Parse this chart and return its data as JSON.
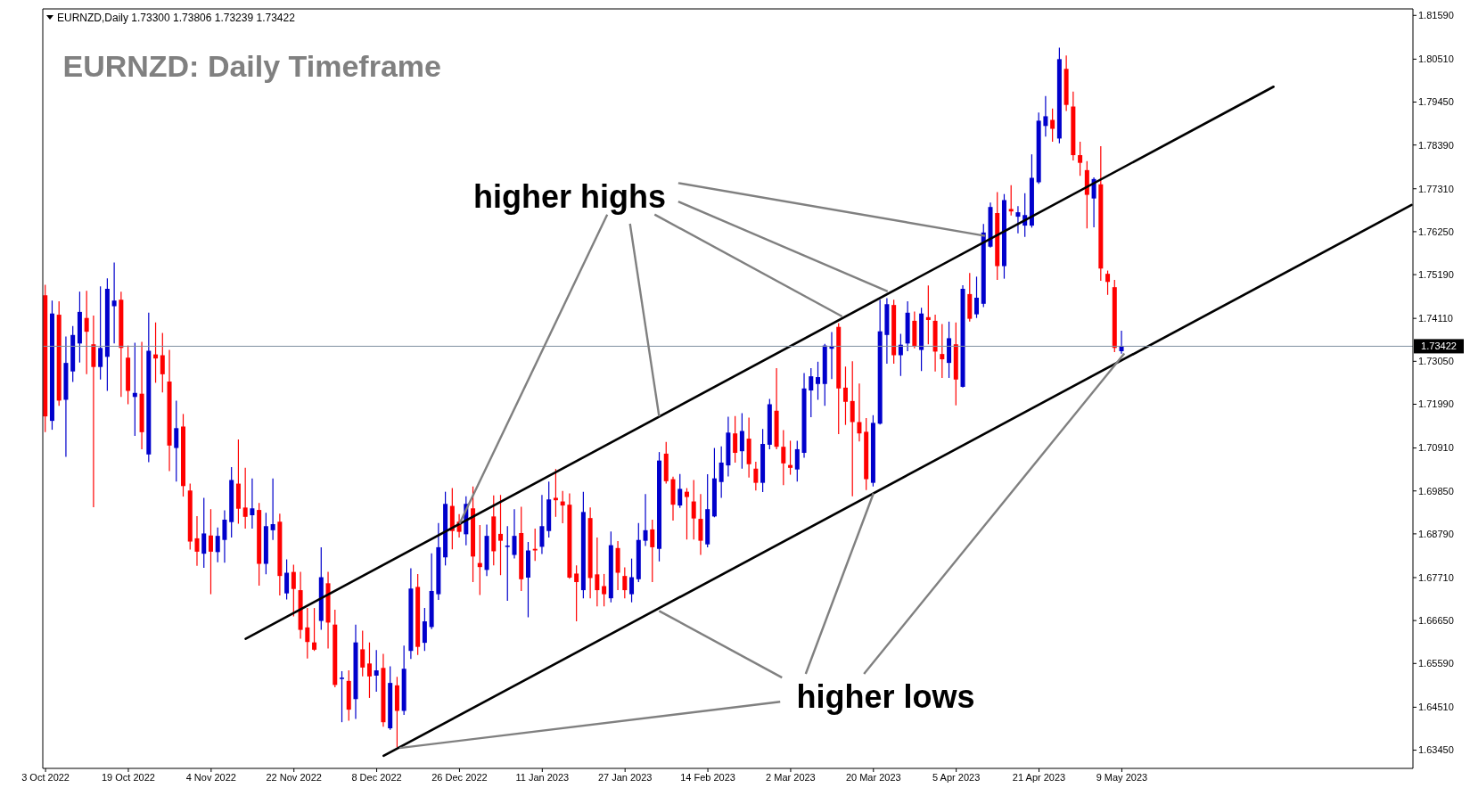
{
  "chart_data": {
    "type": "candlestick",
    "title": "EURNZD: Daily Timeframe",
    "subtitle": "EURNZD,Daily  1.73300 1.73806 1.73239 1.73422",
    "annotations": [
      {
        "text": "higher highs",
        "x": "26 Dec 2022",
        "y": 1.6904
      },
      {
        "text": "higher lows",
        "x": "20 Mar 2023",
        "y": 1.6979
      }
    ],
    "categories": [
      "3 Oct 2022",
      null,
      null,
      null,
      null,
      null,
      null,
      null,
      null,
      null,
      null,
      null,
      "19 Oct 2022",
      null,
      null,
      null,
      null,
      null,
      null,
      null,
      null,
      null,
      null,
      null,
      "4 Nov 2022",
      null,
      null,
      null,
      null,
      null,
      null,
      null,
      null,
      null,
      null,
      null,
      "22 Nov 2022",
      null,
      null,
      null,
      null,
      null,
      null,
      null,
      null,
      null,
      null,
      null,
      "8 Dec 2022",
      null,
      null,
      null,
      null,
      null,
      null,
      null,
      null,
      null,
      null,
      null,
      "26 Dec 2022",
      null,
      null,
      null,
      null,
      null,
      null,
      null,
      null,
      null,
      null,
      null,
      "11 Jan 2023",
      null,
      null,
      null,
      null,
      null,
      null,
      null,
      null,
      null,
      null,
      null,
      "27 Jan 2023",
      null,
      null,
      null,
      null,
      null,
      null,
      null,
      null,
      null,
      null,
      null,
      "14 Feb 2023",
      null,
      null,
      null,
      null,
      null,
      null,
      null,
      null,
      null,
      null,
      null,
      "2 Mar 2023",
      null,
      null,
      null,
      null,
      null,
      null,
      null,
      null,
      null,
      null,
      null,
      "20 Mar 2023",
      null,
      null,
      null,
      null,
      null,
      null,
      null,
      null,
      null,
      null,
      null,
      "5 Apr 2023",
      null,
      null,
      null,
      null,
      null,
      null,
      null,
      null,
      null,
      null,
      null,
      "21 Apr 2023",
      null,
      null,
      null,
      null,
      null,
      null,
      null,
      null,
      null,
      null,
      null,
      "9 May 2023",
      null,
      null,
      null,
      null,
      null,
      null,
      null,
      null,
      null,
      null,
      null,
      null,
      null,
      null,
      null,
      null,
      null,
      null,
      null,
      null,
      null,
      null,
      null,
      null,
      null,
      null,
      null,
      null,
      null,
      null,
      null,
      null,
      null,
      null,
      null,
      null,
      null,
      null,
      null,
      null,
      null,
      null
    ],
    "ohlc": [
      [
        1.7468,
        1.7494,
        1.713,
        1.7169
      ],
      [
        1.7158,
        1.7455,
        1.7136,
        1.7423
      ],
      [
        1.742,
        1.7453,
        1.7195,
        1.7208
      ],
      [
        1.721,
        1.7366,
        1.7069,
        1.7301
      ],
      [
        1.728,
        1.7392,
        1.7254,
        1.737
      ],
      [
        1.7349,
        1.7477,
        1.7302,
        1.7427
      ],
      [
        1.7412,
        1.7479,
        1.7273,
        1.7378
      ],
      [
        1.7347,
        1.7418,
        1.6945,
        1.7291
      ],
      [
        1.7291,
        1.749,
        1.726,
        1.7338
      ],
      [
        1.7316,
        1.751,
        1.7232,
        1.7484
      ],
      [
        1.7441,
        1.7549,
        1.7349,
        1.7455
      ],
      [
        1.7457,
        1.7477,
        1.7217,
        1.7338
      ],
      [
        1.7314,
        1.7344,
        1.7199,
        1.7232
      ],
      [
        1.7217,
        1.7351,
        1.7121,
        1.7227
      ],
      [
        1.7225,
        1.7353,
        1.7088,
        1.713
      ],
      [
        1.7075,
        1.7425,
        1.7056,
        1.7331
      ],
      [
        1.7322,
        1.7401,
        1.7252,
        1.7312
      ],
      [
        1.732,
        1.7375,
        1.7228,
        1.7273
      ],
      [
        1.7255,
        1.7333,
        1.7034,
        1.7097
      ],
      [
        1.7091,
        1.7208,
        1.7008,
        1.714
      ],
      [
        1.7144,
        1.7175,
        1.6971,
        1.6997
      ],
      [
        1.6986,
        1.7003,
        1.684,
        1.686
      ],
      [
        1.6868,
        1.6923,
        1.68,
        1.6835
      ],
      [
        1.683,
        1.6968,
        1.6795,
        1.688
      ],
      [
        1.6875,
        1.694,
        1.673,
        1.6835
      ],
      [
        1.6834,
        1.6895,
        1.6809,
        1.6874
      ],
      [
        1.6864,
        1.6937,
        1.6808,
        1.6914
      ],
      [
        1.6908,
        1.7044,
        1.687,
        1.7012
      ],
      [
        1.7003,
        1.7112,
        1.6904,
        1.6941
      ],
      [
        1.6944,
        1.7042,
        1.6892,
        1.6921
      ],
      [
        1.6925,
        1.7016,
        1.6892,
        1.6942
      ],
      [
        1.6938,
        1.6955,
        1.6751,
        1.6805
      ],
      [
        1.6805,
        1.6931,
        1.6779,
        1.6898
      ],
      [
        1.6888,
        1.7016,
        1.6864,
        1.6903
      ],
      [
        1.6909,
        1.6929,
        1.6727,
        1.6775
      ],
      [
        1.6732,
        1.6816,
        1.6717,
        1.6783
      ],
      [
        1.6785,
        1.6803,
        1.6675,
        1.6743
      ],
      [
        1.674,
        1.6785,
        1.662,
        1.6642
      ],
      [
        1.6648,
        1.6696,
        1.6571,
        1.6612
      ],
      [
        1.6611,
        1.6696,
        1.659,
        1.6593
      ],
      [
        1.6664,
        1.6846,
        1.6642,
        1.6772
      ],
      [
        1.6757,
        1.6785,
        1.6596,
        1.666
      ],
      [
        1.6655,
        1.6692,
        1.65,
        1.6506
      ],
      [
        1.6522,
        1.654,
        1.6414,
        1.6524
      ],
      [
        1.6516,
        1.6542,
        1.6418,
        1.6445
      ],
      [
        1.6471,
        1.6655,
        1.6422,
        1.6611
      ],
      [
        1.6594,
        1.664,
        1.6527,
        1.6549
      ],
      [
        1.6559,
        1.6611,
        1.6474,
        1.6527
      ],
      [
        1.6529,
        1.6592,
        1.6489,
        1.6542
      ],
      [
        1.6548,
        1.6583,
        1.6403,
        1.6414
      ],
      [
        1.6399,
        1.6552,
        1.6395,
        1.6511
      ],
      [
        1.6505,
        1.6526,
        1.6352,
        1.6442
      ],
      [
        1.6442,
        1.6603,
        1.6432,
        1.6546
      ],
      [
        1.659,
        1.6794,
        1.657,
        1.6744
      ],
      [
        1.6748,
        1.678,
        1.658,
        1.66
      ],
      [
        1.661,
        1.6696,
        1.659,
        1.6663
      ],
      [
        1.6649,
        1.6831,
        1.6644,
        1.6738
      ],
      [
        1.673,
        1.6906,
        1.6716,
        1.6846
      ],
      [
        1.6821,
        1.6983,
        1.6801,
        1.6953
      ],
      [
        1.6948,
        1.6992,
        1.6841,
        1.6886
      ],
      [
        1.6909,
        1.6928,
        1.687,
        1.6884
      ],
      [
        1.6878,
        1.6972,
        1.6851,
        1.6953
      ],
      [
        1.6942,
        1.6996,
        1.676,
        1.6823
      ],
      [
        1.6807,
        1.6901,
        1.6728,
        1.6797
      ],
      [
        1.679,
        1.6902,
        1.6775,
        1.6874
      ],
      [
        1.6922,
        1.6974,
        1.6801,
        1.6836
      ],
      [
        1.6879,
        1.6975,
        1.6777,
        1.6862
      ],
      [
        1.6849,
        1.6898,
        1.6714,
        1.685
      ],
      [
        1.6827,
        1.694,
        1.6818,
        1.6874
      ],
      [
        1.6881,
        1.6946,
        1.6738,
        1.6767
      ],
      [
        1.6771,
        1.6859,
        1.6673,
        1.6838
      ],
      [
        1.6842,
        1.6892,
        1.6812,
        1.6838
      ],
      [
        1.6847,
        1.6975,
        1.6829,
        1.6898
      ],
      [
        1.6886,
        1.7008,
        1.687,
        1.6964
      ],
      [
        1.6968,
        1.7039,
        1.6921,
        1.6962
      ],
      [
        1.6959,
        1.6985,
        1.6905,
        1.6949
      ],
      [
        1.6951,
        1.6979,
        1.6768,
        1.6771
      ],
      [
        1.6781,
        1.6801,
        1.6663,
        1.676
      ],
      [
        1.674,
        1.6983,
        1.672,
        1.6933
      ],
      [
        1.6918,
        1.6944,
        1.672,
        1.677
      ],
      [
        1.6779,
        1.687,
        1.67,
        1.674
      ],
      [
        1.675,
        1.678,
        1.67,
        1.673
      ],
      [
        1.672,
        1.6885,
        1.671,
        1.6851
      ],
      [
        1.6844,
        1.6861,
        1.674,
        1.6783
      ],
      [
        1.6775,
        1.6796,
        1.672,
        1.674
      ],
      [
        1.673,
        1.6818,
        1.671,
        1.6772
      ],
      [
        1.6767,
        1.6906,
        1.676,
        1.6864
      ],
      [
        1.6862,
        1.6977,
        1.6849,
        1.6888
      ],
      [
        1.689,
        1.6914,
        1.676,
        1.6846
      ],
      [
        1.6842,
        1.7081,
        1.6811,
        1.706
      ],
      [
        1.7077,
        1.7106,
        1.7003,
        1.7009
      ],
      [
        1.7014,
        1.702,
        1.6912,
        1.6951
      ],
      [
        1.6949,
        1.7027,
        1.6943,
        1.699
      ],
      [
        1.6983,
        1.6992,
        1.6865,
        1.697
      ],
      [
        1.6959,
        1.7012,
        1.6865,
        1.6917
      ],
      [
        1.6916,
        1.6977,
        1.6827,
        1.6862
      ],
      [
        1.6853,
        1.7026,
        1.6846,
        1.694
      ],
      [
        1.6922,
        1.7091,
        1.692,
        1.7016
      ],
      [
        1.7007,
        1.7095,
        1.6968,
        1.7055
      ],
      [
        1.7048,
        1.7168,
        1.7021,
        1.7129
      ],
      [
        1.7127,
        1.717,
        1.7055,
        1.7079
      ],
      [
        1.7083,
        1.7177,
        1.704,
        1.7133
      ],
      [
        1.7114,
        1.7166,
        1.7018,
        1.7051
      ],
      [
        1.704,
        1.7057,
        1.6986,
        1.7005
      ],
      [
        1.7005,
        1.7138,
        1.6982,
        1.7101
      ],
      [
        1.7099,
        1.7212,
        1.7088,
        1.7199
      ],
      [
        1.7183,
        1.7288,
        1.7088,
        1.7094
      ],
      [
        1.7094,
        1.7135,
        1.6999,
        1.7053
      ],
      [
        1.7049,
        1.7109,
        1.7025,
        1.7042
      ],
      [
        1.7038,
        1.7109,
        1.7008,
        1.7088
      ],
      [
        1.7079,
        1.7276,
        1.7067,
        1.7238
      ],
      [
        1.7233,
        1.7288,
        1.7167,
        1.7268
      ],
      [
        1.7249,
        1.7304,
        1.721,
        1.7266
      ],
      [
        1.7249,
        1.7348,
        1.7195,
        1.7344
      ],
      [
        1.7336,
        1.7377,
        1.7261,
        1.7342
      ],
      [
        1.739,
        1.7399,
        1.7125,
        1.7238
      ],
      [
        1.724,
        1.7292,
        1.7148,
        1.7205
      ],
      [
        1.7207,
        1.7305,
        1.6972,
        1.7155
      ],
      [
        1.7155,
        1.725,
        1.7107,
        1.7127
      ],
      [
        1.7131,
        1.7165,
        1.6987,
        1.7014
      ],
      [
        1.7005,
        1.7172,
        1.6996,
        1.7153
      ],
      [
        1.7151,
        1.7457,
        1.7149,
        1.7379
      ],
      [
        1.737,
        1.7461,
        1.7299,
        1.7446
      ],
      [
        1.7444,
        1.7457,
        1.7299,
        1.732
      ],
      [
        1.732,
        1.7373,
        1.7269,
        1.7346
      ],
      [
        1.7349,
        1.7453,
        1.733,
        1.7425
      ],
      [
        1.7405,
        1.7428,
        1.7337,
        1.7342
      ],
      [
        1.7333,
        1.7437,
        1.7281,
        1.7423
      ],
      [
        1.7414,
        1.7492,
        1.7347,
        1.7407
      ],
      [
        1.7405,
        1.742,
        1.728,
        1.7329
      ],
      [
        1.7323,
        1.7397,
        1.7264,
        1.731
      ],
      [
        1.7301,
        1.7403,
        1.7264,
        1.7362
      ],
      [
        1.7347,
        1.7401,
        1.7196,
        1.726
      ],
      [
        1.7242,
        1.7493,
        1.724,
        1.7484
      ],
      [
        1.7471,
        1.7523,
        1.7403,
        1.741
      ],
      [
        1.7421,
        1.7514,
        1.7412,
        1.7462
      ],
      [
        1.7447,
        1.7644,
        1.7439,
        1.7623
      ],
      [
        1.7588,
        1.7697,
        1.7586,
        1.7686
      ],
      [
        1.7671,
        1.7723,
        1.7506,
        1.754
      ],
      [
        1.754,
        1.7718,
        1.7509,
        1.7703
      ],
      [
        1.7681,
        1.774,
        1.7665,
        1.7675
      ],
      [
        1.7662,
        1.7688,
        1.7621,
        1.7673
      ],
      [
        1.764,
        1.772,
        1.7612,
        1.7666
      ],
      [
        1.764,
        1.7816,
        1.7635,
        1.7758
      ],
      [
        1.7747,
        1.7919,
        1.7743,
        1.7899
      ],
      [
        1.7886,
        1.796,
        1.786,
        1.791
      ],
      [
        1.7901,
        1.7929,
        1.7847,
        1.7879
      ],
      [
        1.7855,
        1.8079,
        1.7843,
        1.8051
      ],
      [
        1.8027,
        1.806,
        1.7923,
        1.7938
      ],
      [
        1.7934,
        1.7971,
        1.7801,
        1.7814
      ],
      [
        1.7814,
        1.7847,
        1.7763,
        1.7795
      ],
      [
        1.7777,
        1.7799,
        1.7633,
        1.7716
      ],
      [
        1.7707,
        1.7759,
        1.7636,
        1.7755
      ],
      [
        1.7742,
        1.7836,
        1.7504,
        1.7534
      ],
      [
        1.7521,
        1.7529,
        1.7469,
        1.7501
      ],
      [
        1.7488,
        1.7506,
        1.7328,
        1.7338
      ],
      [
        1.733,
        1.73806,
        1.73239,
        1.73422
      ],
      null,
      null,
      null,
      null,
      null,
      null,
      null,
      null,
      null,
      null,
      null,
      null,
      null,
      null,
      null,
      null,
      null,
      null,
      null,
      null,
      null,
      null,
      null,
      null,
      null,
      null,
      null,
      null,
      null,
      null,
      null,
      null,
      null,
      null,
      null,
      null,
      null,
      null,
      null,
      null,
      null,
      null
    ],
    "colors": [
      "#ff0000",
      "#0000cc",
      "#ff0000",
      "#0000cc",
      "#0000cc",
      "#0000cc",
      "#ff0000",
      "#ff0000",
      "#0000cc",
      "#0000cc",
      "#0000cc",
      "#ff0000",
      "#ff0000",
      "#0000cc",
      "#ff0000",
      "#0000cc",
      "#ff0000",
      "#ff0000",
      "#ff0000",
      "#0000cc",
      "#ff0000",
      "#ff0000",
      "#ff0000",
      "#0000cc",
      "#ff0000",
      "#0000cc",
      "#0000cc",
      "#0000cc",
      "#ff0000",
      "#ff0000",
      "#0000cc",
      "#ff0000",
      "#0000cc",
      "#0000cc",
      "#ff0000",
      "#0000cc",
      "#ff0000",
      "#ff0000",
      "#ff0000",
      "#ff0000",
      "#0000cc",
      "#ff0000",
      "#ff0000",
      "#0000cc",
      "#ff0000",
      "#0000cc",
      "#ff0000",
      "#ff0000",
      "#0000cc",
      "#ff0000",
      "#0000cc",
      "#ff0000",
      "#0000cc",
      "#0000cc",
      "#ff0000",
      "#0000cc",
      "#0000cc",
      "#0000cc",
      "#0000cc",
      "#ff0000",
      "#ff0000",
      "#0000cc",
      "#ff0000",
      "#ff0000",
      "#0000cc",
      "#ff0000",
      "#ff0000",
      "#0000cc",
      "#0000cc",
      "#ff0000",
      "#0000cc",
      "#ff0000",
      "#0000cc",
      "#0000cc",
      "#ff0000",
      "#ff0000",
      "#ff0000",
      "#ff0000",
      "#0000cc",
      "#ff0000",
      "#ff0000",
      "#ff0000",
      "#0000cc",
      "#ff0000",
      "#ff0000",
      "#0000cc",
      "#0000cc",
      "#0000cc",
      "#ff0000",
      "#0000cc",
      "#ff0000",
      "#ff0000",
      "#0000cc",
      "#ff0000",
      "#ff0000",
      "#ff0000",
      "#0000cc",
      "#0000cc",
      "#0000cc",
      "#0000cc",
      "#ff0000",
      "#0000cc",
      "#ff0000",
      "#ff0000",
      "#0000cc",
      "#0000cc",
      "#ff0000",
      "#ff0000",
      "#ff0000",
      "#0000cc",
      "#0000cc",
      "#0000cc",
      "#0000cc",
      "#0000cc",
      "#0000cc",
      "#ff0000",
      "#ff0000",
      "#ff0000",
      "#ff0000",
      "#ff0000",
      "#0000cc",
      "#0000cc",
      "#0000cc",
      "#ff0000",
      "#0000cc",
      "#0000cc",
      "#ff0000",
      "#0000cc",
      "#ff0000",
      "#ff0000",
      "#ff0000",
      "#0000cc",
      "#ff0000",
      "#0000cc",
      "#ff0000",
      "#0000cc",
      "#0000cc",
      "#0000cc",
      "#ff0000",
      "#0000cc",
      "#ff0000",
      "#0000cc",
      "#0000cc",
      "#0000cc",
      "#0000cc",
      "#0000cc",
      "#ff0000",
      "#0000cc",
      "#ff0000",
      "#ff0000",
      "#ff0000",
      "#ff0000",
      "#0000cc",
      "#ff0000",
      "#ff0000",
      "#ff0000",
      "#0000cc",
      null,
      null,
      null,
      null,
      null,
      null,
      null,
      null,
      null,
      null,
      null,
      null,
      null,
      null,
      null,
      null,
      null,
      null,
      null,
      null,
      null,
      null,
      null,
      null,
      null,
      null,
      null,
      null,
      null,
      null,
      null,
      null,
      null,
      null,
      null,
      null,
      null,
      null,
      null,
      null,
      null,
      null
    ],
    "series": [
      {
        "type": "line",
        "color": "#000000",
        "values": [
          null,
          null,
          null,
          null,
          null,
          null,
          null,
          null,
          null,
          null,
          null,
          null,
          null,
          null,
          null,
          null,
          null,
          null,
          null,
          null,
          null,
          null,
          null,
          null,
          null,
          null,
          null,
          null,
          null,
          1.662,
          null,
          null,
          null,
          null,
          null,
          null,
          null,
          null,
          null,
          null,
          null,
          null,
          null,
          null,
          null,
          null,
          null,
          null,
          null,
          null,
          null,
          null,
          null,
          null,
          null,
          null,
          null,
          null,
          null,
          null,
          null,
          null,
          null,
          null,
          null,
          null,
          null,
          null,
          null,
          null,
          null,
          null,
          null,
          null,
          null,
          null,
          null,
          null,
          null,
          null,
          null,
          null,
          null,
          null,
          null,
          null,
          null,
          null,
          null,
          null,
          null,
          null,
          null,
          null,
          null,
          null,
          null,
          null,
          null,
          null,
          null,
          null,
          null,
          null,
          null,
          null,
          null,
          null,
          null,
          null,
          null,
          null,
          null,
          null,
          null,
          null,
          null,
          null,
          null,
          null,
          null,
          null,
          null,
          null,
          null,
          null,
          null,
          null,
          null,
          null,
          null,
          null,
          null,
          null,
          null,
          null,
          null,
          null,
          null,
          null,
          null,
          null,
          null,
          null,
          null,
          null,
          null,
          null,
          null,
          null,
          null,
          null,
          null,
          null,
          null,
          null,
          null,
          null,
          null,
          null,
          null,
          null,
          null,
          null,
          null,
          null,
          null,
          null,
          null,
          null,
          null,
          null,
          null,
          null,
          null,
          null,
          null,
          null,
          1.7983,
          null,
          null,
          null,
          null,
          null,
          null,
          null,
          null,
          null,
          null,
          null,
          null,
          null,
          null,
          null,
          null,
          null,
          null,
          null,
          null
        ]
      },
      {
        "type": "line",
        "color": "#000000",
        "values": [
          null,
          null,
          null,
          null,
          null,
          null,
          null,
          null,
          null,
          null,
          null,
          null,
          null,
          null,
          null,
          null,
          null,
          null,
          null,
          null,
          null,
          null,
          null,
          null,
          null,
          null,
          null,
          null,
          null,
          null,
          null,
          null,
          null,
          null,
          null,
          null,
          null,
          null,
          null,
          null,
          null,
          null,
          null,
          null,
          null,
          null,
          null,
          null,
          null,
          1.6331,
          null,
          null,
          null,
          null,
          null,
          null,
          null,
          null,
          null,
          null,
          null,
          null,
          null,
          null,
          null,
          null,
          null,
          null,
          null,
          null,
          null,
          null,
          null,
          null,
          null,
          null,
          null,
          null,
          null,
          null,
          null,
          null,
          null,
          null,
          null,
          null,
          null,
          null,
          null,
          null,
          null,
          null,
          null,
          null,
          null,
          null,
          null,
          null,
          null,
          null,
          null,
          null,
          null,
          null,
          null,
          null,
          null,
          null,
          null,
          null,
          null,
          null,
          null,
          null,
          null,
          null,
          null,
          null,
          null,
          null,
          null,
          null,
          null,
          null,
          null,
          null,
          null,
          null,
          null,
          null,
          null,
          null,
          null,
          null,
          null,
          null,
          null,
          null,
          null,
          null,
          null,
          null,
          null,
          null,
          null,
          null,
          null,
          null,
          null,
          null,
          null,
          null,
          null,
          null,
          null,
          null,
          null,
          null,
          null,
          null,
          null,
          null,
          null,
          null,
          null,
          null,
          null,
          null,
          null,
          null,
          null,
          null,
          null,
          null,
          null,
          null,
          null,
          null,
          null,
          null,
          null,
          null,
          null,
          null,
          null,
          null,
          null,
          null,
          null,
          null,
          null,
          null,
          null,
          null,
          null,
          null,
          null,
          null,
          1.7691
        ]
      }
    ],
    "ylim": [
      1.63,
      1.8175
    ],
    "yticks": [
      {
        "value": 1.8159,
        "label": "1.81590"
      },
      {
        "value": 1.8051,
        "label": "1.80510"
      },
      {
        "value": 1.7945,
        "label": "1.79450"
      },
      {
        "value": 1.7839,
        "label": "1.78390"
      },
      {
        "value": 1.7731,
        "label": "1.77310"
      },
      {
        "value": 1.7625,
        "label": "1.76250"
      },
      {
        "value": 1.7519,
        "label": "1.75190"
      },
      {
        "value": 1.7411,
        "label": "1.74110"
      },
      {
        "value": 1.7305,
        "label": "1.73050"
      },
      {
        "value": 1.7199,
        "label": "1.71990"
      },
      {
        "value": 1.7091,
        "label": "1.70910"
      },
      {
        "value": 1.6985,
        "label": "1.69850"
      },
      {
        "value": 1.6879,
        "label": "1.68790"
      },
      {
        "value": 1.6771,
        "label": "1.67710"
      },
      {
        "value": 1.6665,
        "label": "1.66650"
      },
      {
        "value": 1.6559,
        "label": "1.65590"
      },
      {
        "value": 1.6451,
        "label": "1.64510"
      },
      {
        "value": 1.6345,
        "label": "1.63450"
      }
    ],
    "ref_lines": [
      {
        "axis": "y",
        "value": 1.73422,
        "label": "1.73422",
        "color": "#8090a0"
      }
    ]
  }
}
